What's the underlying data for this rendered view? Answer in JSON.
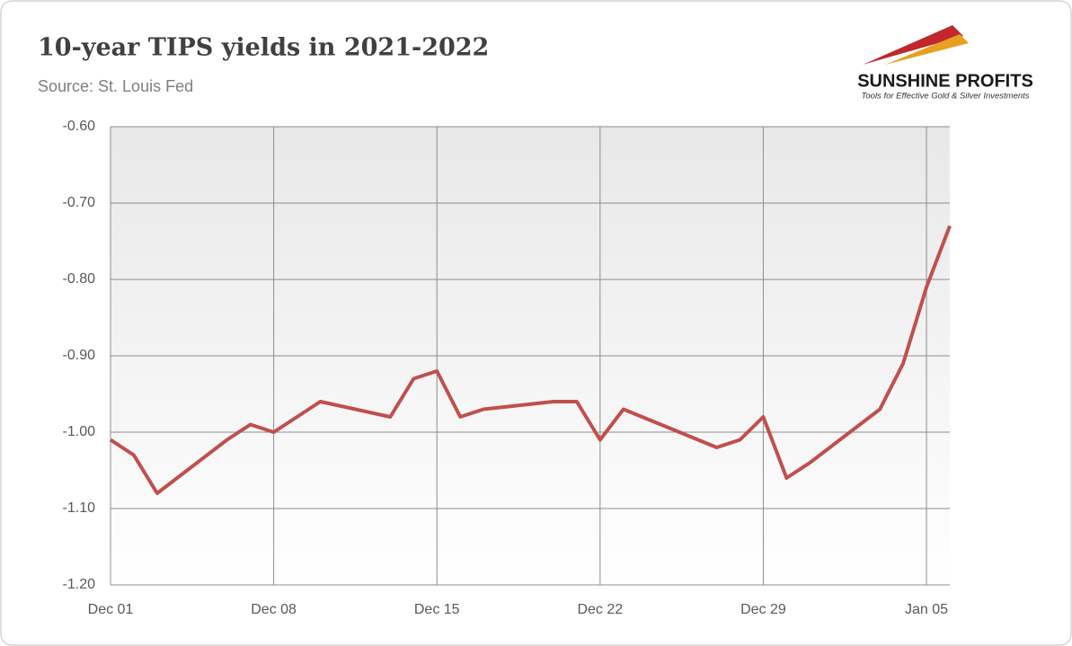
{
  "chart_data": {
    "type": "line",
    "title": "10-year TIPS yields in 2021-2022",
    "subtitle": "Source: St. Louis Fed",
    "logo": {
      "name": "SUNSHINE PROFITS",
      "tagline": "Tools for Effective Gold & Silver Investments"
    },
    "x": [
      "Dec 01",
      "Dec 02",
      "Dec 03",
      "Dec 06",
      "Dec 07",
      "Dec 08",
      "Dec 09",
      "Dec 10",
      "Dec 13",
      "Dec 14",
      "Dec 15",
      "Dec 16",
      "Dec 17",
      "Dec 20",
      "Dec 21",
      "Dec 22",
      "Dec 23",
      "Dec 27",
      "Dec 28",
      "Dec 29",
      "Dec 30",
      "Dec 31",
      "Jan 03",
      "Jan 04",
      "Jan 05",
      "Jan 06"
    ],
    "series": [
      {
        "name": "10-year TIPS yield",
        "color": "#c0504d",
        "values": [
          -1.01,
          -1.03,
          -1.08,
          -1.01,
          -0.99,
          -1.0,
          -0.98,
          -0.96,
          -0.98,
          -0.93,
          -0.92,
          -0.98,
          -0.97,
          -0.96,
          -0.96,
          -1.01,
          -0.97,
          -1.02,
          -1.01,
          -0.98,
          -1.06,
          -1.04,
          -0.97,
          -0.91,
          -0.81,
          -0.73
        ]
      }
    ],
    "xlim": [
      "Dec 01",
      "Jan 06"
    ],
    "xticks": [
      "Dec 01",
      "Dec 08",
      "Dec 15",
      "Dec 22",
      "Dec 29",
      "Jan 05"
    ],
    "ylim": [
      -1.2,
      -0.6
    ],
    "yticks": [
      {
        "value": -1.2,
        "label": "-1.20"
      },
      {
        "value": -1.1,
        "label": "-1.10"
      },
      {
        "value": -1.0,
        "label": "-1.00"
      },
      {
        "value": -0.9,
        "label": "-0.90"
      },
      {
        "value": -0.8,
        "label": "-0.80"
      },
      {
        "value": -0.7,
        "label": "-0.70"
      },
      {
        "value": -0.6,
        "label": "-0.60"
      }
    ],
    "grid": true
  }
}
